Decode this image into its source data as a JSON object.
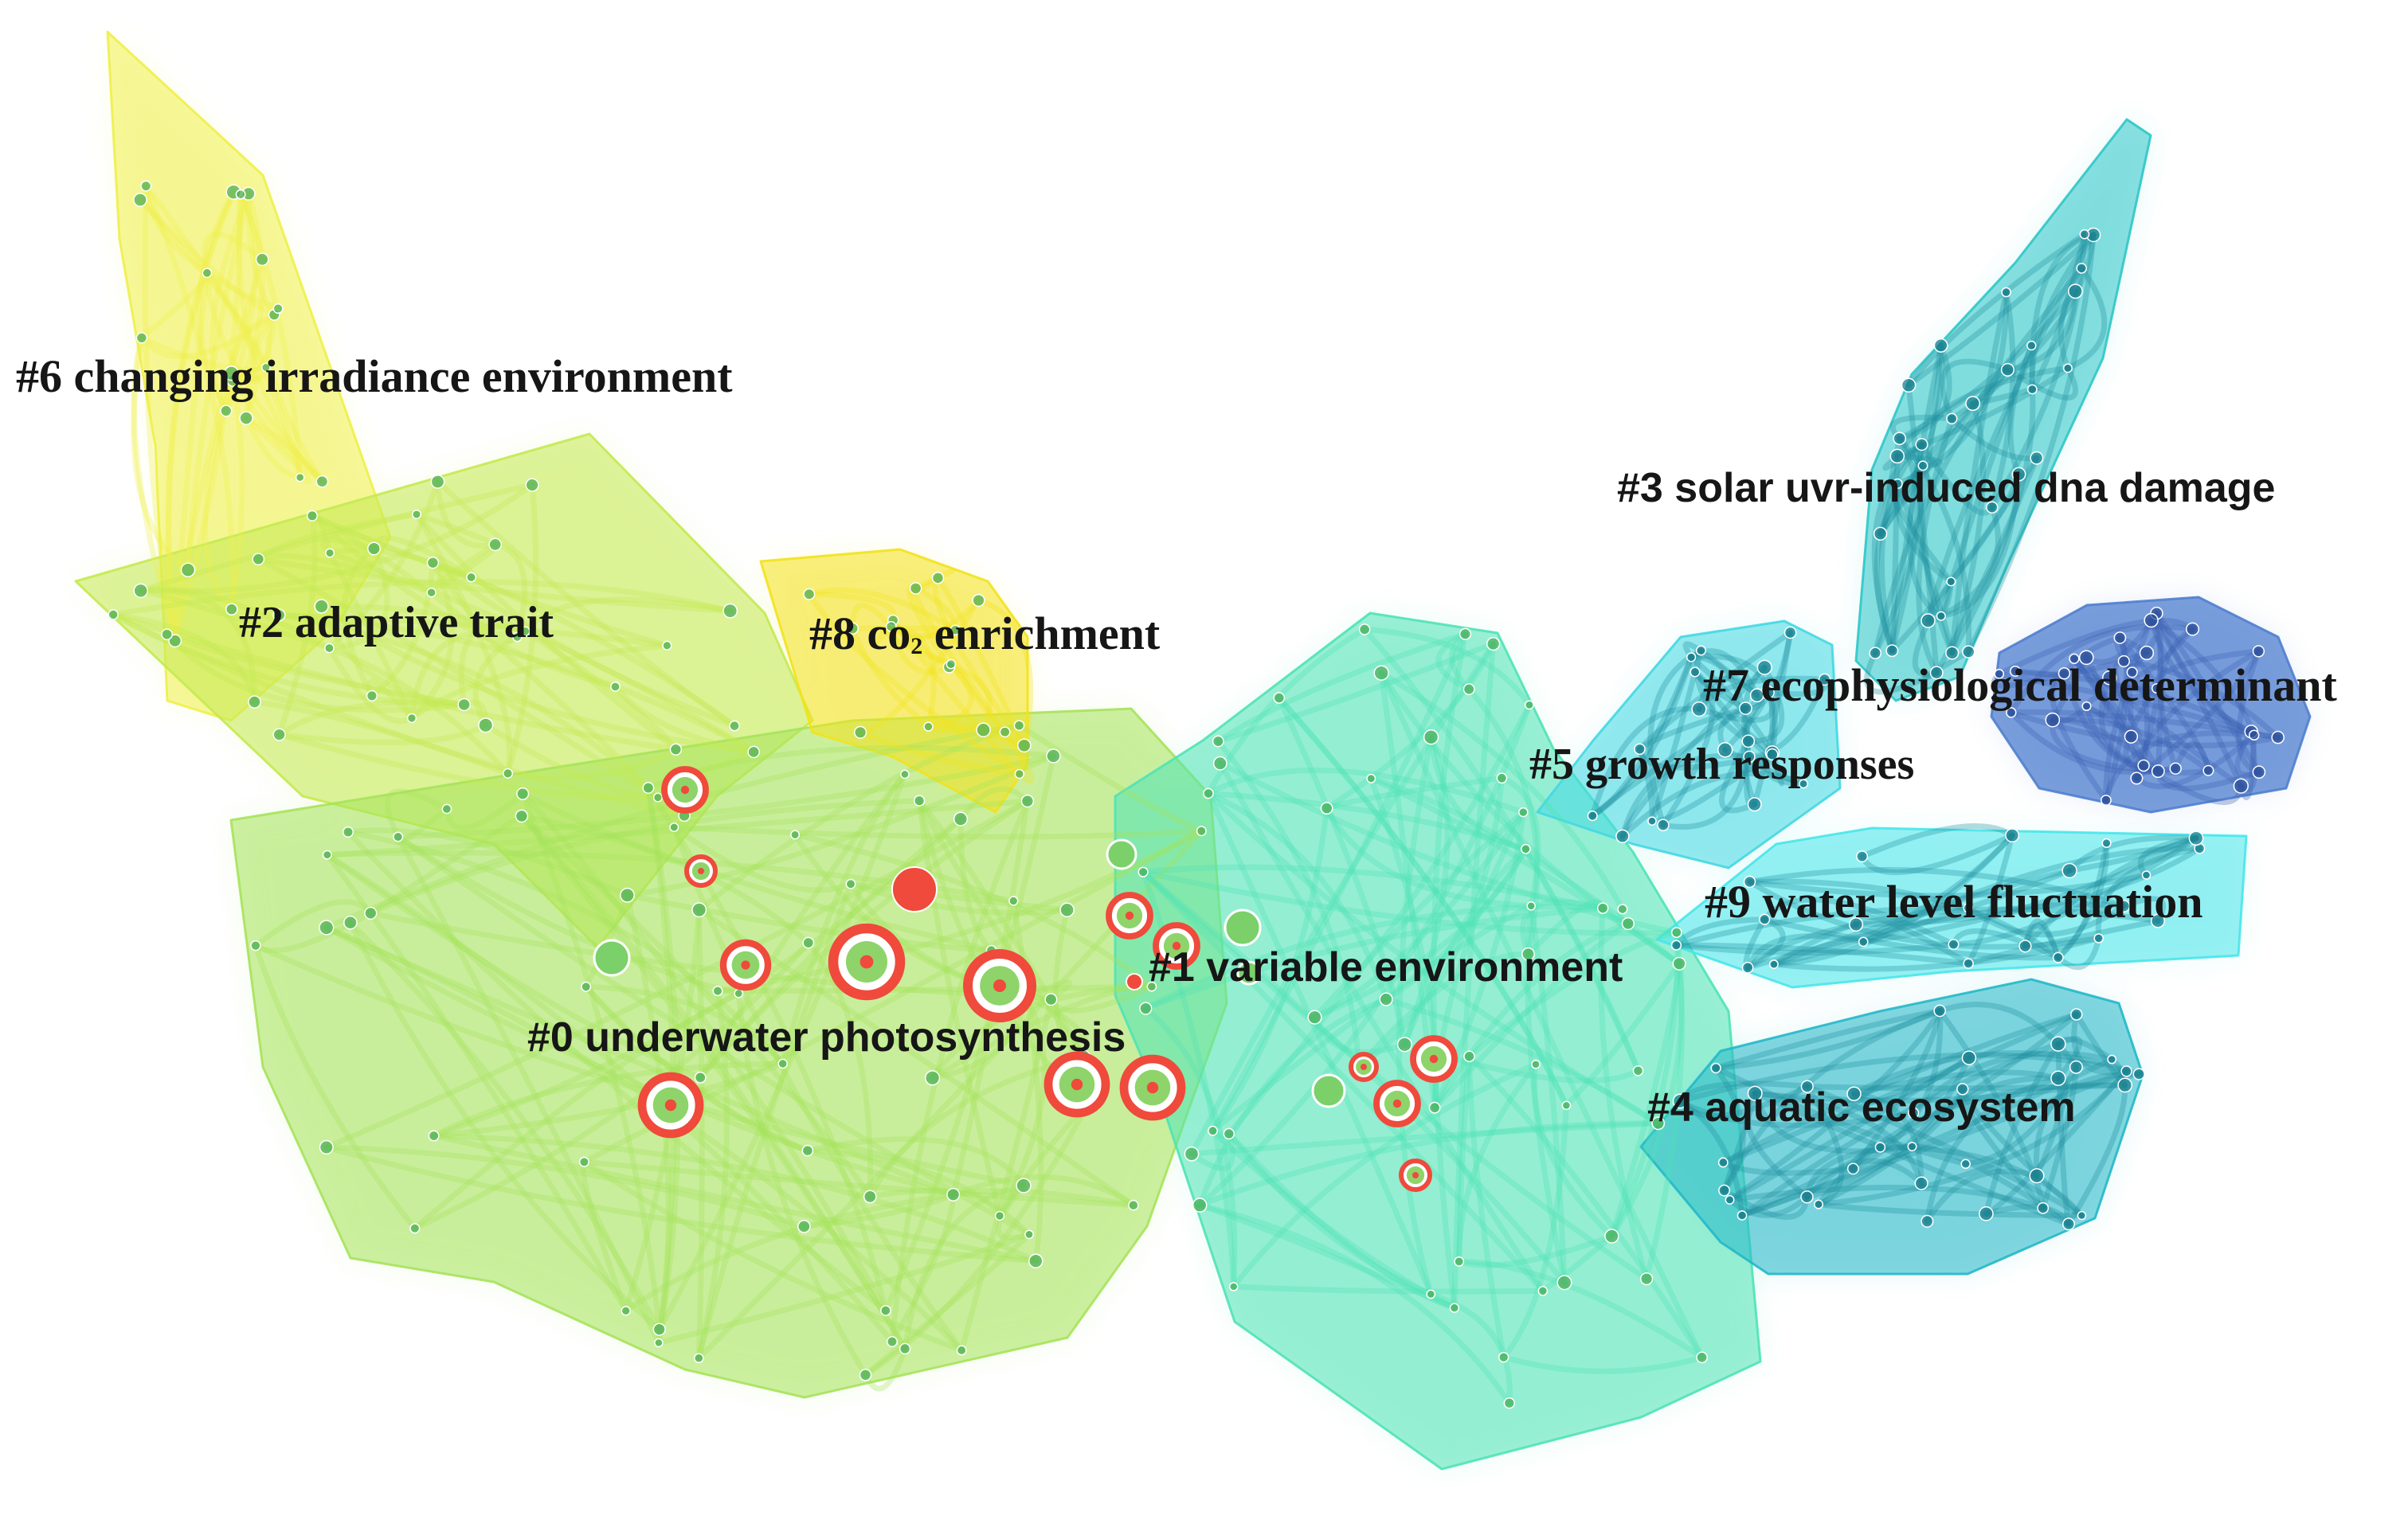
{
  "clusters": [
    {
      "id": 0,
      "label": "#0 underwater photosynthesis",
      "color": "#a6e35a"
    },
    {
      "id": 1,
      "label": "#1 variable environment",
      "color": "#4fe3b5"
    },
    {
      "id": 2,
      "label": "#2 adaptive trait",
      "color": "#c4ea50"
    },
    {
      "id": 3,
      "label": "#3 solar uvr-induced dna damage",
      "color": "#2ec7c8"
    },
    {
      "id": 4,
      "label": "#4 aquatic ecosystem",
      "color": "#24b8c8"
    },
    {
      "id": 5,
      "label": "#5 growth responses",
      "color": "#44d8e2"
    },
    {
      "id": 6,
      "label": "#6 changing irradiance environment",
      "color": "#eef04a"
    },
    {
      "id": 7,
      "label": "#7 ecophysiological determinant",
      "color": "#4f7fcf"
    },
    {
      "id": 8,
      "label": "#8 co",
      "label_subscript": "2",
      "label_suffix": " enrichment",
      "color": "#f2e21c"
    },
    {
      "id": 9,
      "label": "#9 water level fluctuation",
      "color": "#48e6ea"
    }
  ],
  "highlight_color": "#ef4a3c"
}
